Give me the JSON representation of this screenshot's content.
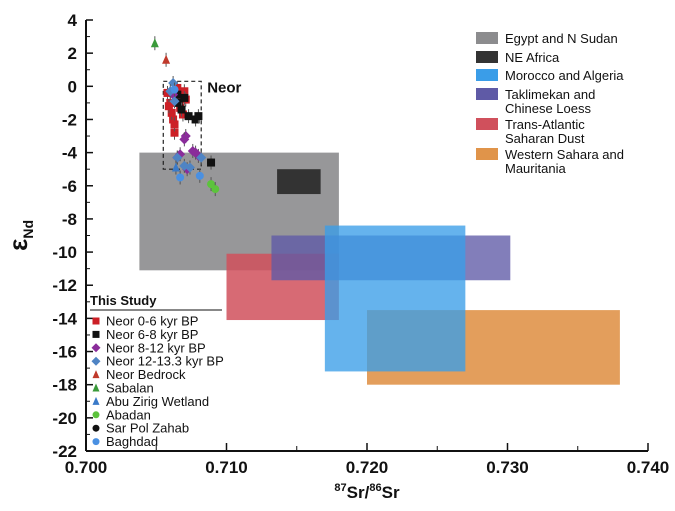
{
  "chart_data": {
    "type": "scatter",
    "xlabel": "87Sr/86Sr",
    "ylabel": "εNd",
    "xlim": [
      0.7,
      0.74
    ],
    "ylim": [
      -22,
      4
    ],
    "x_ticks": [
      "0.700",
      "0.710",
      "0.720",
      "0.730",
      "0.740"
    ],
    "x_tick_values": [
      0.7,
      0.71,
      0.72,
      0.73,
      0.74
    ],
    "y_ticks": [
      "4",
      "2",
      "0",
      "-2",
      "-4",
      "-6",
      "-8",
      "-10",
      "-12",
      "-14",
      "-16",
      "-18",
      "-20",
      "-22"
    ],
    "y_tick_values": [
      4,
      2,
      0,
      -2,
      -4,
      -6,
      -8,
      -10,
      -12,
      -14,
      -16,
      -18,
      -20,
      -22
    ],
    "fields": [
      {
        "name": "Egypt and  N Sudan",
        "color": "#8c8c8e",
        "opacity": 0.9,
        "x": [
          0.7038,
          0.718
        ],
        "y": [
          -11.1,
          -4.0
        ]
      },
      {
        "name": "Western Sahara and Mauritania",
        "color": "#e0944a",
        "opacity": 0.9,
        "x": [
          0.72,
          0.738
        ],
        "y": [
          -18.0,
          -13.5
        ]
      },
      {
        "name": "Trans-Atlantic Saharan Dust",
        "color": "#d0505c",
        "opacity": 0.85,
        "x": [
          0.71,
          0.718
        ],
        "y": [
          -14.1,
          -10.1
        ]
      },
      {
        "name": "Taklimekan and Chinese Loess",
        "color": "#5f5aa6",
        "opacity": 0.78,
        "x": [
          0.7132,
          0.7302
        ],
        "y": [
          -11.7,
          -9.0
        ]
      },
      {
        "name": "Morocco and Algeria",
        "color": "#3a9de8",
        "opacity": 0.78,
        "x": [
          0.717,
          0.727
        ],
        "y": [
          -17.2,
          -8.4
        ]
      },
      {
        "name": "NE Africa",
        "color": "#333333",
        "opacity": 1.0,
        "x": [
          0.7136,
          0.7167
        ],
        "y": [
          -6.5,
          -5.0
        ]
      }
    ],
    "legend_fields": [
      {
        "label": "Egypt and  N Sudan",
        "color": "#8c8c8e"
      },
      {
        "label": "NE Africa",
        "color": "#333333"
      },
      {
        "label": "Morocco and Algeria",
        "color": "#3a9de8"
      },
      {
        "label": "Taklimekan and\nChinese Loess",
        "color": "#5f5aa6"
      },
      {
        "label": "Trans-Atlantic\nSaharan Dust",
        "color": "#d0505c"
      },
      {
        "label": "Western Sahara and\nMauritania",
        "color": "#e0944a"
      }
    ],
    "series": [
      {
        "name": "Neor 0-6 kyr BP",
        "marker": "square",
        "color": "#cc1f26",
        "x": [
          0.7058,
          0.706,
          0.7062,
          0.7063,
          0.7064,
          0.7065,
          0.7066,
          0.7067,
          0.7068,
          0.7069,
          0.707,
          0.7071,
          0.7061,
          0.7063,
          0.7059
        ],
        "y": [
          -0.4,
          -1.0,
          -2.0,
          -2.8,
          -0.6,
          -0.1,
          -0.9,
          -1.3,
          -0.6,
          -1.7,
          -0.3,
          -0.8,
          -1.6,
          -2.3,
          -1.2
        ]
      },
      {
        "name": "Neor 6-8 kyr BP",
        "marker": "square",
        "color": "#111111",
        "x": [
          0.7066,
          0.7068,
          0.707,
          0.7073,
          0.7078,
          0.708,
          0.7089,
          0.7065
        ],
        "y": [
          -1.0,
          -1.4,
          -0.7,
          -1.8,
          -2.0,
          -1.8,
          -4.6,
          -0.5
        ]
      },
      {
        "name": "Neor 8-12 kyr BP",
        "marker": "diamond",
        "color": "#8a2c9a",
        "x": [
          0.7065,
          0.7071,
          0.7076,
          0.708,
          0.7072,
          0.7067,
          0.7078,
          0.7062,
          0.707
        ],
        "y": [
          -4.3,
          -3.0,
          -3.9,
          -4.2,
          -5.0,
          -4.1,
          -4.0,
          -0.5,
          -3.2
        ]
      },
      {
        "name": "Neor 12-13.3 kyr BP",
        "marker": "diamond",
        "color": "#4f84c4",
        "x": [
          0.7062,
          0.7065,
          0.707,
          0.7074,
          0.7082,
          0.7063,
          0.706
        ],
        "y": [
          0.2,
          -4.3,
          -4.8,
          -4.9,
          -4.3,
          -0.9,
          -0.3
        ]
      },
      {
        "name": "Neor Bedrock",
        "marker": "triangle",
        "color": "#c0392b",
        "x": [
          0.7057
        ],
        "y": [
          1.6
        ]
      },
      {
        "name": "Sabalan",
        "marker": "triangle",
        "color": "#3a9a3a",
        "x": [
          0.7049
        ],
        "y": [
          2.6
        ]
      },
      {
        "name": "Abu Zirig Wetland",
        "marker": "triangle",
        "color": "#3a7ac8",
        "x": [
          0.7064
        ],
        "y": [
          -4.9
        ]
      },
      {
        "name": "Abadan",
        "marker": "circle",
        "color": "#5cc33c",
        "x": [
          0.7089,
          0.7092
        ],
        "y": [
          -5.9,
          -6.2
        ]
      },
      {
        "name": "Sar Pol Zahab",
        "marker": "circle",
        "color": "#111111",
        "x": [
          0.7089
        ],
        "y": [
          -4.6
        ]
      },
      {
        "name": "Baghdad",
        "marker": "circle",
        "color": "#4a90e2",
        "x": [
          0.7067,
          0.7081,
          0.7063
        ],
        "y": [
          -5.5,
          -5.4,
          -0.2
        ]
      }
    ],
    "legend_title": "This Study",
    "annotation": {
      "label": "Neor",
      "box_x": [
        0.7055,
        0.7082
      ],
      "box_y": [
        -5.0,
        0.3
      ]
    }
  }
}
